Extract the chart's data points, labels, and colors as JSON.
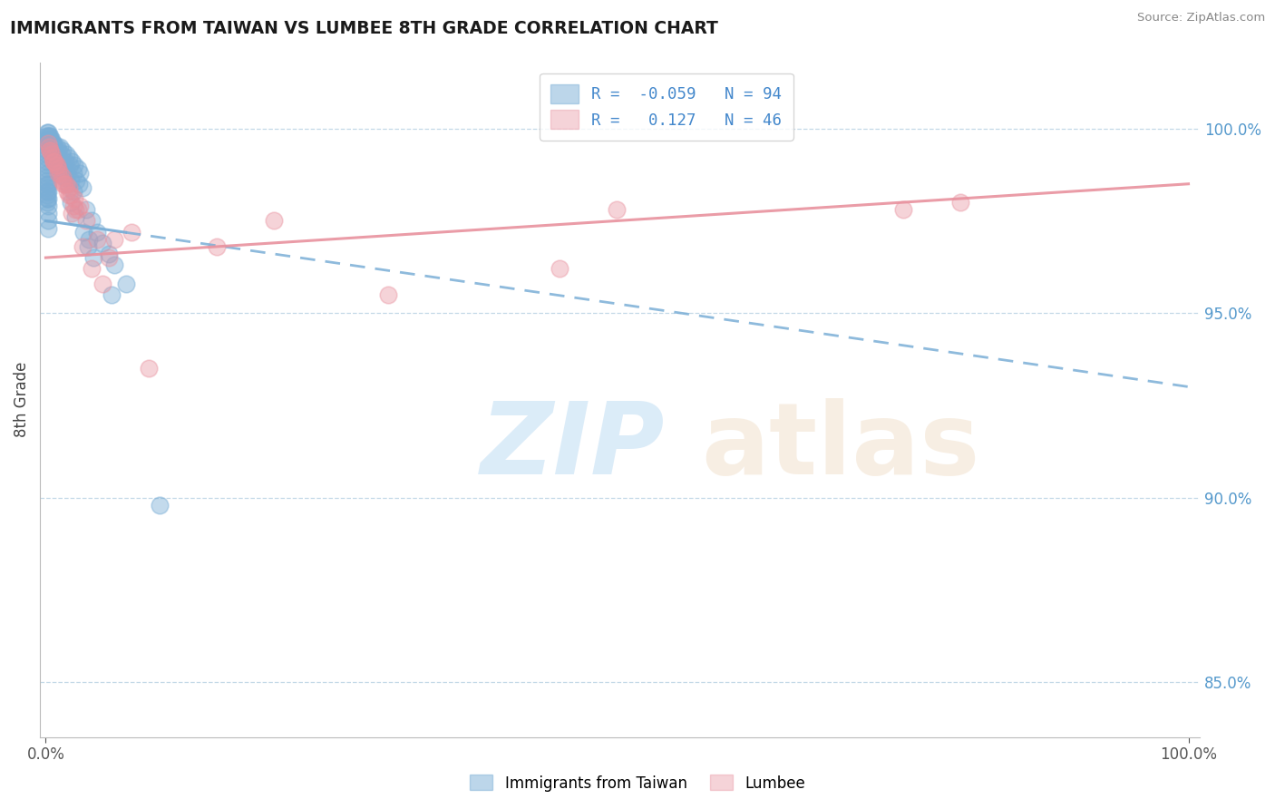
{
  "title": "IMMIGRANTS FROM TAIWAN VS LUMBEE 8TH GRADE CORRELATION CHART",
  "source": "Source: ZipAtlas.com",
  "ylabel": "8th Grade",
  "yticks": [
    85.0,
    90.0,
    95.0,
    100.0
  ],
  "ymin": 83.5,
  "ymax": 101.8,
  "xmin": -0.5,
  "xmax": 101.0,
  "blue_color": "#7aaed6",
  "pink_color": "#e8919e",
  "blue_R": -0.059,
  "blue_N": 94,
  "pink_R": 0.127,
  "pink_N": 46,
  "blue_line_x0": 0,
  "blue_line_y0": 97.5,
  "blue_line_x1": 100,
  "blue_line_y1": 93.0,
  "pink_line_x0": 0,
  "pink_line_y0": 96.5,
  "pink_line_x1": 100,
  "pink_line_y1": 98.5,
  "blue_solid_end_x": 7,
  "blue_scatter_x": [
    0.3,
    0.5,
    0.7,
    1.0,
    1.2,
    1.5,
    1.8,
    2.0,
    2.3,
    2.5,
    2.8,
    3.0,
    0.4,
    0.6,
    0.8,
    1.1,
    1.4,
    1.7,
    2.1,
    2.4,
    2.7,
    3.2,
    0.2,
    0.35,
    0.55,
    0.75,
    0.95,
    1.25,
    1.55,
    1.85,
    2.15,
    2.45,
    0.15,
    0.25,
    0.45,
    0.65,
    0.85,
    1.05,
    1.35,
    1.65,
    1.95,
    0.1,
    0.1,
    0.1,
    0.1,
    0.1,
    0.1,
    0.1,
    0.1,
    0.1,
    0.1,
    0.1,
    0.1,
    0.1,
    0.1,
    0.1,
    0.1,
    0.1,
    0.1,
    0.1,
    0.1,
    3.5,
    4.0,
    4.5,
    5.0,
    5.5,
    6.0,
    7.0,
    0.2,
    0.2,
    0.2,
    0.2,
    0.2,
    0.2,
    0.2,
    3.8,
    4.2,
    5.8,
    2.2,
    2.6,
    3.3,
    3.7,
    10.0,
    1.3,
    1.6,
    0.9,
    1.1,
    0.8,
    2.9,
    0.6,
    0.7
  ],
  "blue_scatter_y": [
    99.8,
    99.7,
    99.6,
    99.5,
    99.5,
    99.4,
    99.3,
    99.2,
    99.1,
    99.0,
    98.9,
    98.8,
    99.8,
    99.6,
    99.5,
    99.4,
    99.3,
    99.1,
    99.0,
    98.8,
    98.6,
    98.4,
    99.9,
    99.7,
    99.6,
    99.4,
    99.3,
    99.1,
    99.0,
    98.8,
    98.6,
    98.3,
    99.8,
    99.7,
    99.5,
    99.4,
    99.2,
    99.1,
    98.9,
    98.7,
    98.5,
    99.9,
    99.8,
    99.7,
    99.6,
    99.5,
    99.4,
    99.3,
    99.2,
    99.1,
    99.0,
    98.9,
    98.8,
    98.7,
    98.6,
    98.5,
    98.4,
    98.3,
    98.2,
    98.1,
    98.0,
    97.8,
    97.5,
    97.2,
    96.9,
    96.6,
    96.3,
    95.8,
    98.5,
    98.3,
    98.1,
    97.9,
    97.7,
    97.5,
    97.3,
    97.0,
    96.5,
    95.5,
    98.0,
    97.6,
    97.2,
    96.8,
    89.8,
    99.0,
    98.7,
    99.2,
    99.1,
    99.3,
    98.5,
    99.5,
    99.4
  ],
  "pink_scatter_x": [
    0.3,
    0.5,
    0.8,
    1.0,
    1.5,
    1.8,
    2.0,
    2.5,
    3.0,
    0.4,
    0.6,
    0.9,
    1.2,
    1.6,
    2.2,
    2.8,
    0.2,
    0.7,
    1.1,
    1.4,
    1.9,
    2.4,
    0.35,
    0.65,
    1.05,
    1.55,
    2.05,
    2.55,
    3.5,
    4.5,
    5.5,
    7.5,
    15.0,
    20.0,
    30.0,
    45.0,
    50.0,
    75.0,
    80.0,
    2.3,
    3.2,
    4.0,
    5.0,
    6.0,
    9.0
  ],
  "pink_scatter_y": [
    99.5,
    99.3,
    99.1,
    99.0,
    98.7,
    98.5,
    98.4,
    98.1,
    97.9,
    99.4,
    99.2,
    99.0,
    98.8,
    98.5,
    98.2,
    97.8,
    99.6,
    99.1,
    98.9,
    98.6,
    98.3,
    97.9,
    99.4,
    99.1,
    98.8,
    98.5,
    98.2,
    97.8,
    97.5,
    97.0,
    96.5,
    97.2,
    96.8,
    97.5,
    95.5,
    96.2,
    97.8,
    97.8,
    98.0,
    97.7,
    96.8,
    96.2,
    95.8,
    97.0,
    93.5
  ]
}
